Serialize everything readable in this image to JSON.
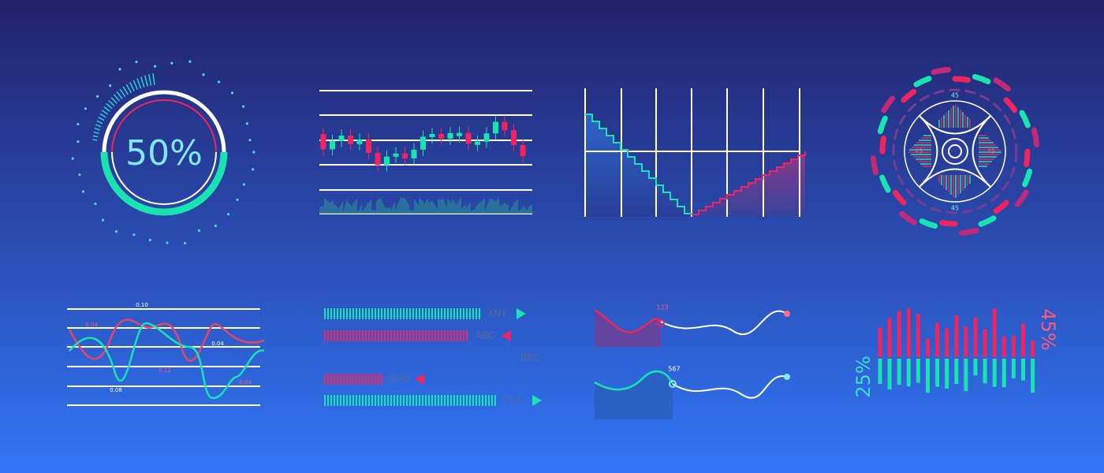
{
  "gauge": {
    "label": "50%"
  },
  "wave_chart": {
    "labels": [
      "0.10",
      "0.04",
      "0.04",
      "0.12",
      "0.08",
      "0.04"
    ]
  },
  "progress_bars": {
    "labels": [
      "XNY",
      "ABC",
      "BBC",
      "DDD",
      "CCX"
    ]
  },
  "markers": {
    "labels": [
      "123",
      "567"
    ]
  },
  "radar": {
    "labels": [
      "45",
      "45",
      "45",
      "45"
    ]
  },
  "split_bars": {
    "left": "25%",
    "right": "45%"
  }
}
